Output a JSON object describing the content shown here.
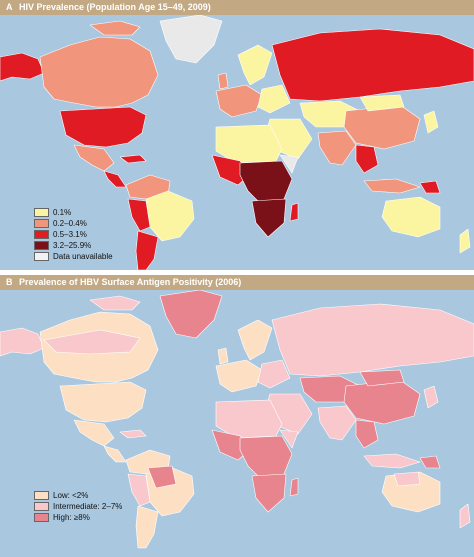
{
  "panel_a": {
    "letter": "A",
    "title": "HIV Prevalence (Population Age 15–49, 2009)",
    "legend": [
      {
        "label": "0.1%",
        "color": "#fbf4a0"
      },
      {
        "label": "0.2–0.4%",
        "color": "#f1957c"
      },
      {
        "label": "0.5–3.1%",
        "color": "#e01b24"
      },
      {
        "label": "3.2–25.9%",
        "color": "#7a1118"
      },
      {
        "label": "Data unavailable",
        "color": "#f2f2f2"
      }
    ]
  },
  "panel_b": {
    "letter": "B",
    "title": "Prevalence of HBV Surface Antigen Positivity (2006)",
    "legend": [
      {
        "label": "Low: <2%",
        "color": "#fde0c4"
      },
      {
        "label": "Intermediate: 2–7%",
        "color": "#f8c8cc"
      },
      {
        "label": "High: ≥8%",
        "color": "#e8848e"
      }
    ]
  },
  "colors": {
    "ocean": "#a9c7df",
    "header": "#c2a983",
    "border": "#ffffff"
  }
}
